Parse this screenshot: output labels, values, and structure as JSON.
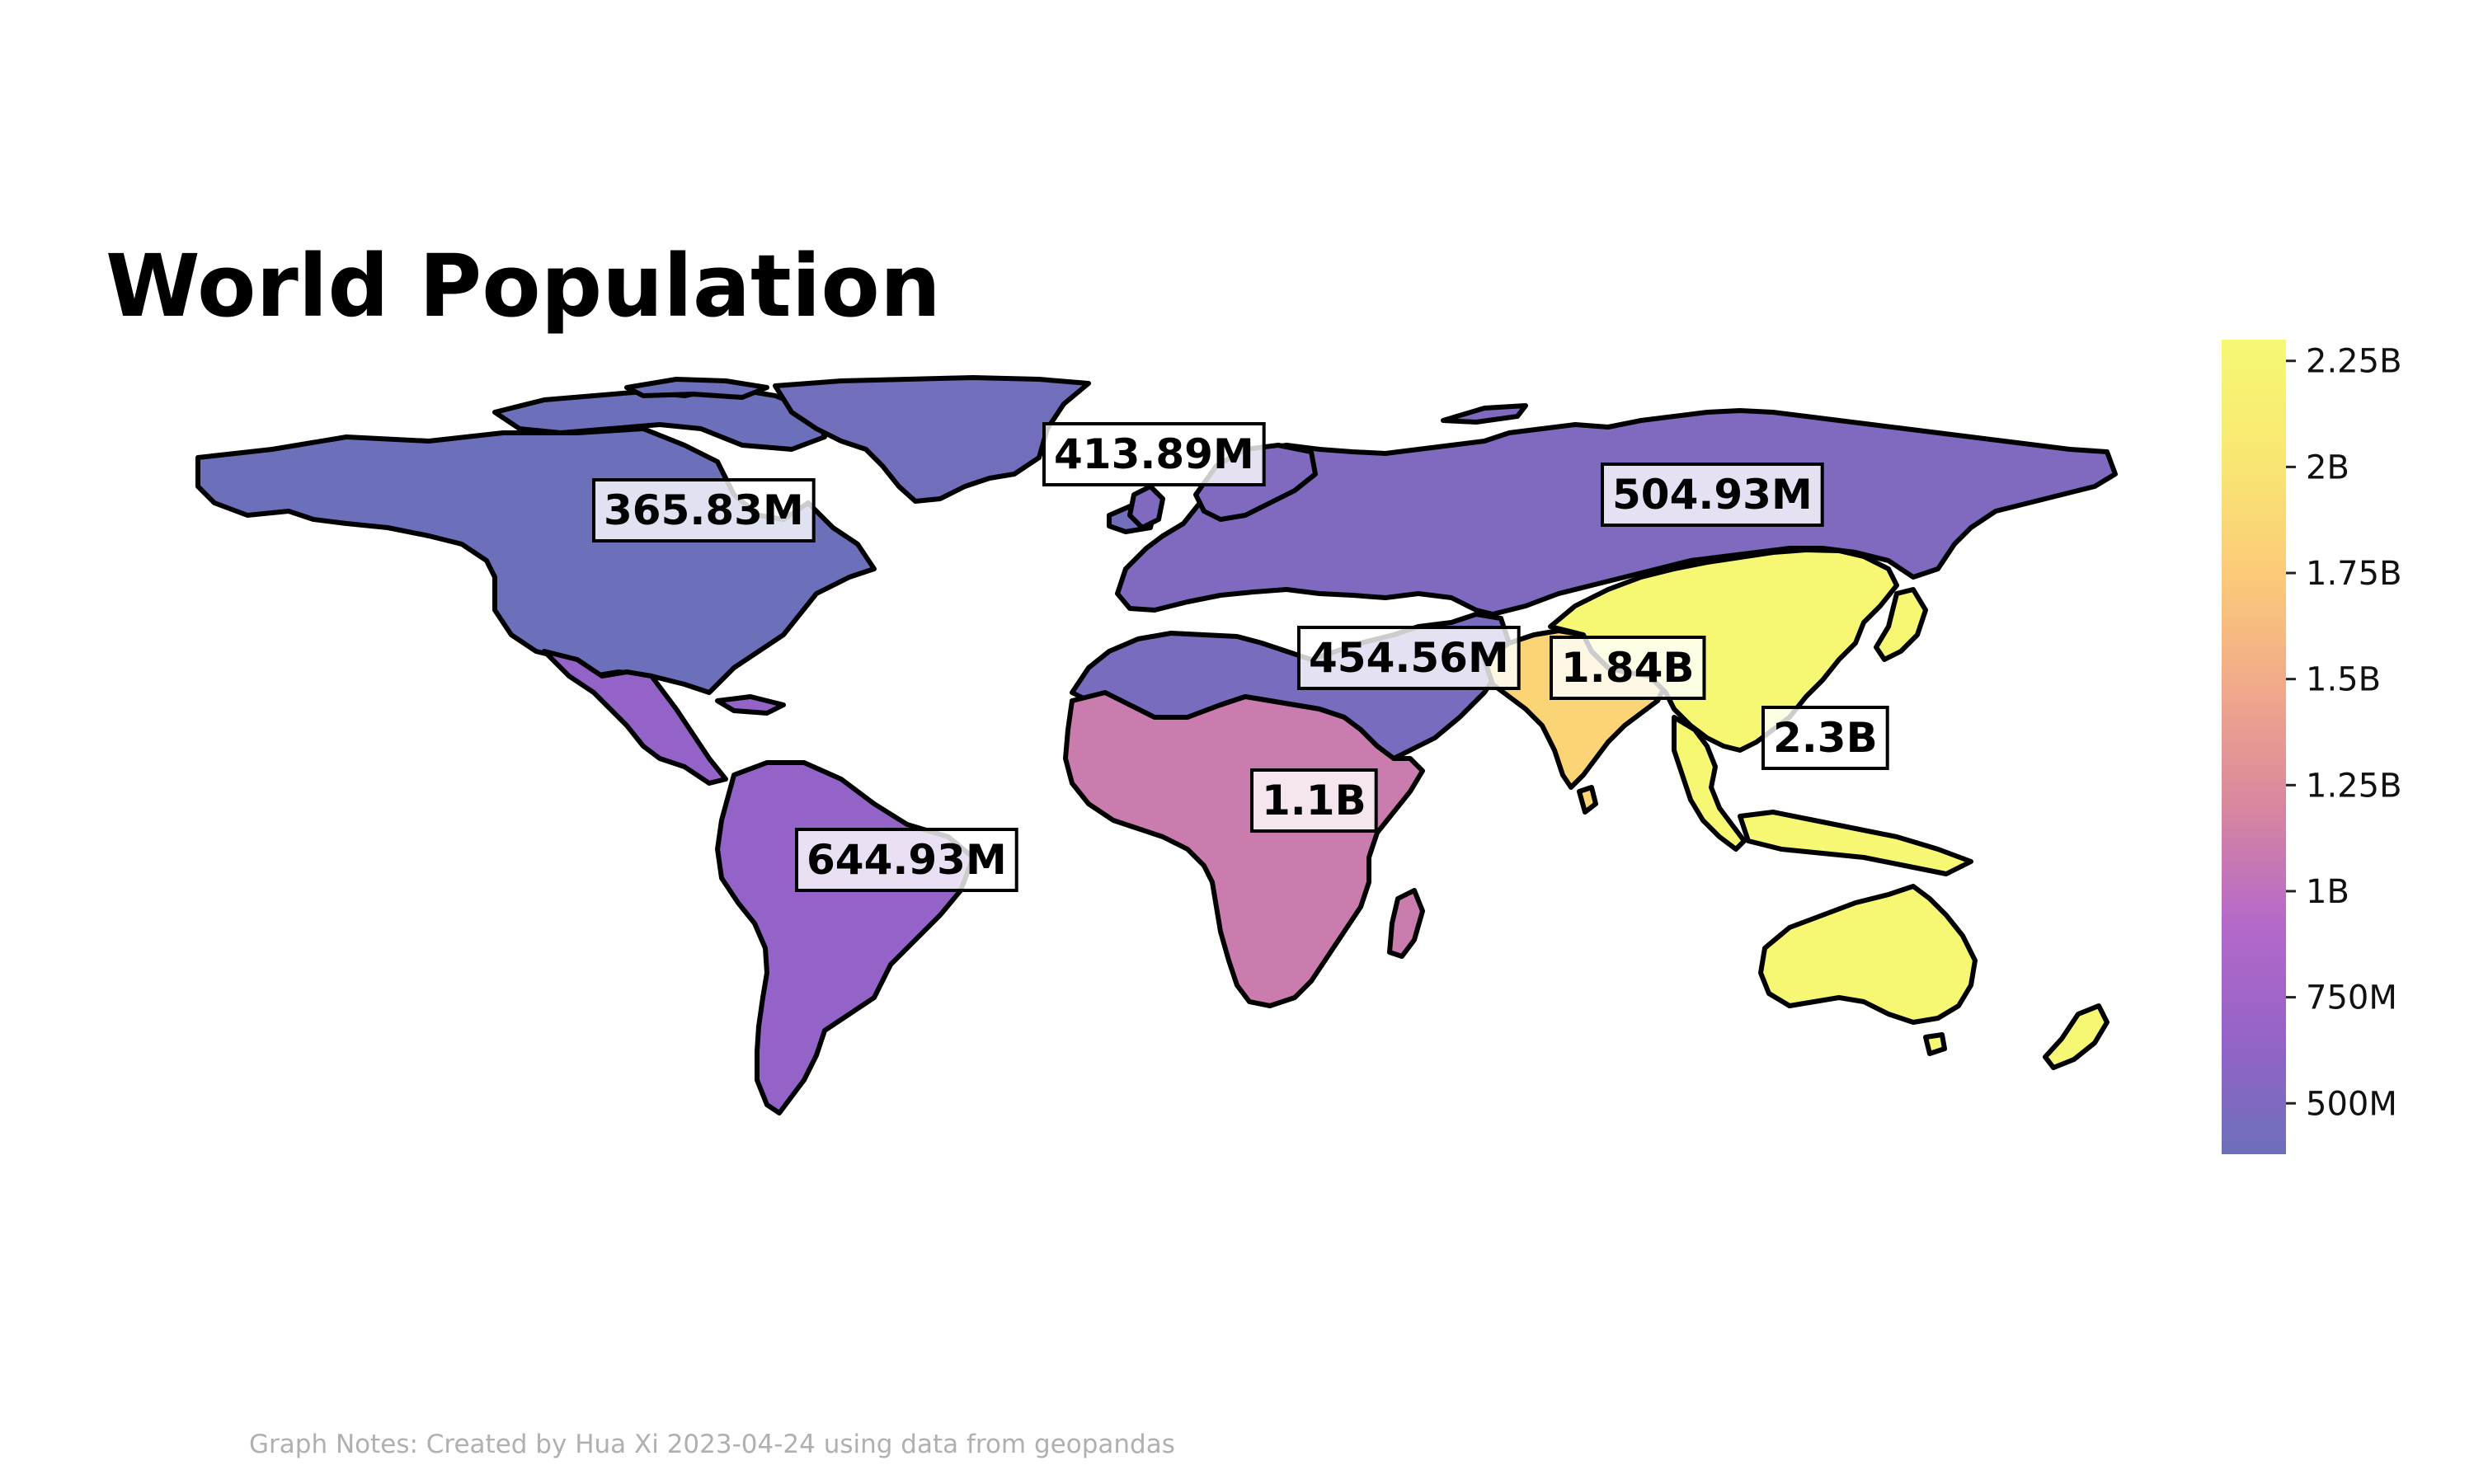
{
  "title": "World Population",
  "notes": "Graph Notes: Created by Hua Xi 2023-04-24 using data from geopandas",
  "colorbar": {
    "min": 380000000,
    "max": 2300000000,
    "colors": [
      "#6c6fba",
      "#9563c8",
      "#b569c9",
      "#d8879f",
      "#f0a98a",
      "#fccb78",
      "#f8e872",
      "#f6f874"
    ],
    "ticks": [
      {
        "value": 500000000,
        "label": "500M"
      },
      {
        "value": 750000000,
        "label": "750M"
      },
      {
        "value": 1000000000,
        "label": "1B"
      },
      {
        "value": 1250000000,
        "label": "1.25B"
      },
      {
        "value": 1500000000,
        "label": "1.5B"
      },
      {
        "value": 1750000000,
        "label": "1.75B"
      },
      {
        "value": 2000000000,
        "label": "2B"
      },
      {
        "value": 2250000000,
        "label": "2.25B"
      }
    ]
  },
  "regions": [
    {
      "id": "north-america",
      "label": "365.83M",
      "value": 365830000
    },
    {
      "id": "greenland-arctic",
      "label": "413.89M",
      "value": 413890000
    },
    {
      "id": "europe-russia",
      "label": "504.93M",
      "value": 504930000
    },
    {
      "id": "middle-east",
      "label": "454.56M",
      "value": 454560000
    },
    {
      "id": "south-asia",
      "label": "1.84B",
      "value": 1840000000
    },
    {
      "id": "east-asia-pacific",
      "label": "2.3B",
      "value": 2300000000
    },
    {
      "id": "africa",
      "label": "1.1B",
      "value": 1100000000
    },
    {
      "id": "latin-america",
      "label": "644.93M",
      "value": 644930000
    }
  ]
}
